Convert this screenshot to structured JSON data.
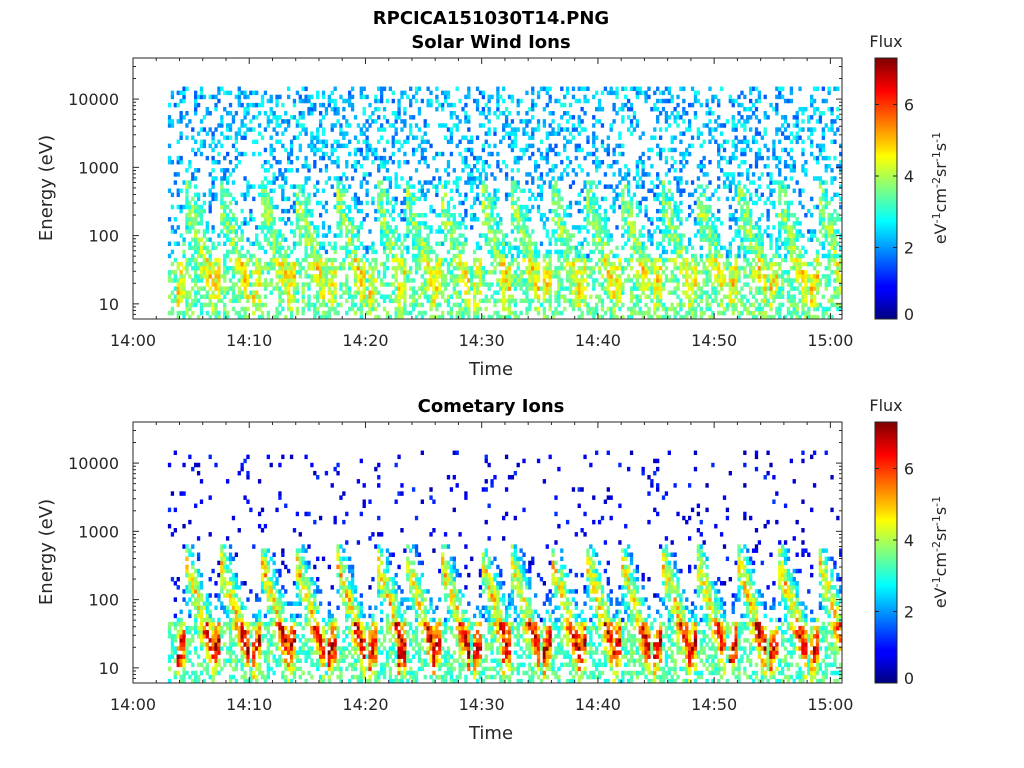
{
  "figure_title": "RPCICA151030T14.PNG",
  "chart_data": [
    {
      "type": "heatmap",
      "title": "Solar Wind Ions",
      "xlabel": "Time",
      "ylabel": "Energy (eV)",
      "x_range": [
        "14:00",
        "15:01"
      ],
      "x_ticks": [
        "14:00",
        "14:10",
        "14:20",
        "14:30",
        "14:40",
        "14:50",
        "15:00"
      ],
      "y_scale": "log",
      "ylim": [
        6,
        40000
      ],
      "y_ticks": [
        "10",
        "100",
        "1000",
        "10000"
      ],
      "y_tick_values": [
        10,
        100,
        1000,
        10000
      ],
      "colorbar": {
        "title": "Flux",
        "label": "eV-1cm-2sr-1s-1",
        "range": [
          0,
          7.3
        ],
        "ticks": [
          "0",
          "2",
          "4",
          "6"
        ],
        "colormap": "jet"
      },
      "data_start": "14:03",
      "peak_times": [
        "14:04.5",
        "14:07.5",
        "14:11",
        "14:14",
        "14:17.5",
        "14:21",
        "14:23.5",
        "14:26.5",
        "14:30",
        "14:32.5",
        "14:36",
        "14:39",
        "14:42",
        "14:45.5",
        "14:48.5",
        "14:52",
        "14:55.5",
        "14:59"
      ],
      "peak_flux": 4.8,
      "background_flux": 2.5
    },
    {
      "type": "heatmap",
      "title": "Cometary Ions",
      "xlabel": "Time",
      "ylabel": "Energy (eV)",
      "x_range": [
        "14:00",
        "15:01"
      ],
      "x_ticks": [
        "14:00",
        "14:10",
        "14:20",
        "14:30",
        "14:40",
        "14:50",
        "15:00"
      ],
      "y_scale": "log",
      "ylim": [
        6,
        40000
      ],
      "y_ticks": [
        "10",
        "100",
        "1000",
        "10000"
      ],
      "y_tick_values": [
        10,
        100,
        1000,
        10000
      ],
      "colorbar": {
        "title": "Flux",
        "label": "eV-1cm-2sr-1s-1",
        "range": [
          0,
          7.3
        ],
        "ticks": [
          "0",
          "2",
          "4",
          "6"
        ],
        "colormap": "jet"
      },
      "data_start": "14:03",
      "peak_times": [
        "14:04.5",
        "14:07.5",
        "14:11",
        "14:14",
        "14:17.5",
        "14:21",
        "14:23.5",
        "14:26.5",
        "14:30",
        "14:32.5",
        "14:36",
        "14:39",
        "14:42",
        "14:45.5",
        "14:48.5",
        "14:52",
        "14:55.5",
        "14:59"
      ],
      "peak_flux": 6.8,
      "background_flux": 0.6
    }
  ]
}
